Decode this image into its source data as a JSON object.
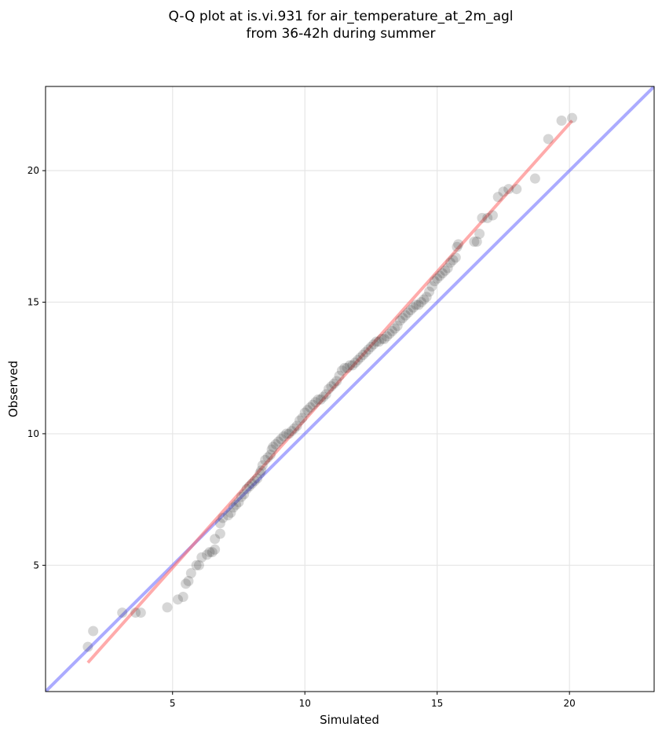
{
  "chart_data": {
    "type": "scatter",
    "title_lines": [
      "Q-Q plot at is.vi.931 for air_temperature_at_2m_agl",
      "from 36-42h during summer"
    ],
    "xlabel": "Simulated",
    "ylabel": "Observed",
    "xlim": [
      0.2,
      23.2
    ],
    "ylim": [
      0.2,
      23.2
    ],
    "xticks": [
      5,
      10,
      15,
      20
    ],
    "yticks": [
      5,
      10,
      15,
      20
    ],
    "grid": true,
    "colors": {
      "points": "#333333",
      "fit_line": "#ff6666",
      "identity_line": "#6666ff",
      "grid": "#e6e6e6"
    },
    "reference_lines": [
      {
        "role": "identity",
        "x": [
          0.2,
          23.2
        ],
        "y": [
          0.2,
          23.2
        ]
      },
      {
        "role": "fit",
        "x": [
          1.8,
          20.1
        ],
        "y": [
          1.3,
          21.9
        ]
      }
    ],
    "points": [
      [
        1.8,
        1.9
      ],
      [
        2.0,
        2.5
      ],
      [
        3.1,
        3.2
      ],
      [
        3.6,
        3.2
      ],
      [
        3.8,
        3.2
      ],
      [
        4.8,
        3.4
      ],
      [
        5.2,
        3.7
      ],
      [
        5.4,
        3.8
      ],
      [
        5.5,
        4.3
      ],
      [
        5.6,
        4.4
      ],
      [
        5.7,
        4.7
      ],
      [
        5.9,
        5.0
      ],
      [
        6.0,
        5.0
      ],
      [
        6.1,
        5.3
      ],
      [
        6.3,
        5.4
      ],
      [
        6.4,
        5.5
      ],
      [
        6.5,
        5.5
      ],
      [
        6.6,
        5.6
      ],
      [
        6.6,
        6.0
      ],
      [
        6.8,
        6.2
      ],
      [
        6.8,
        6.6
      ],
      [
        6.9,
        6.8
      ],
      [
        7.1,
        6.9
      ],
      [
        7.2,
        7.0
      ],
      [
        7.3,
        7.2
      ],
      [
        7.4,
        7.3
      ],
      [
        7.5,
        7.4
      ],
      [
        7.6,
        7.6
      ],
      [
        7.7,
        7.7
      ],
      [
        7.8,
        7.9
      ],
      [
        7.9,
        8.0
      ],
      [
        8.0,
        8.1
      ],
      [
        8.1,
        8.2
      ],
      [
        8.2,
        8.3
      ],
      [
        8.3,
        8.5
      ],
      [
        8.35,
        8.6
      ],
      [
        8.4,
        8.8
      ],
      [
        8.5,
        9.0
      ],
      [
        8.6,
        9.1
      ],
      [
        8.7,
        9.2
      ],
      [
        8.75,
        9.4
      ],
      [
        8.8,
        9.5
      ],
      [
        8.9,
        9.6
      ],
      [
        9.0,
        9.7
      ],
      [
        9.1,
        9.8
      ],
      [
        9.2,
        9.9
      ],
      [
        9.3,
        10.0
      ],
      [
        9.4,
        10.0
      ],
      [
        9.5,
        10.1
      ],
      [
        9.6,
        10.2
      ],
      [
        9.7,
        10.3
      ],
      [
        9.8,
        10.5
      ],
      [
        9.9,
        10.6
      ],
      [
        10.0,
        10.8
      ],
      [
        10.1,
        10.9
      ],
      [
        10.2,
        11.0
      ],
      [
        10.3,
        11.1
      ],
      [
        10.4,
        11.2
      ],
      [
        10.5,
        11.3
      ],
      [
        10.6,
        11.3
      ],
      [
        10.7,
        11.4
      ],
      [
        10.8,
        11.5
      ],
      [
        10.9,
        11.7
      ],
      [
        11.0,
        11.8
      ],
      [
        11.1,
        11.9
      ],
      [
        11.2,
        12.0
      ],
      [
        11.3,
        12.2
      ],
      [
        11.4,
        12.4
      ],
      [
        11.5,
        12.5
      ],
      [
        11.6,
        12.5
      ],
      [
        11.7,
        12.6
      ],
      [
        11.8,
        12.6
      ],
      [
        11.9,
        12.7
      ],
      [
        12.0,
        12.8
      ],
      [
        12.1,
        12.9
      ],
      [
        12.2,
        13.0
      ],
      [
        12.3,
        13.1
      ],
      [
        12.4,
        13.2
      ],
      [
        12.5,
        13.3
      ],
      [
        12.6,
        13.4
      ],
      [
        12.7,
        13.5
      ],
      [
        12.8,
        13.5
      ],
      [
        12.9,
        13.6
      ],
      [
        13.0,
        13.6
      ],
      [
        13.1,
        13.7
      ],
      [
        13.2,
        13.8
      ],
      [
        13.3,
        13.9
      ],
      [
        13.4,
        14.0
      ],
      [
        13.5,
        14.1
      ],
      [
        13.6,
        14.3
      ],
      [
        13.7,
        14.4
      ],
      [
        13.8,
        14.5
      ],
      [
        13.9,
        14.6
      ],
      [
        14.0,
        14.7
      ],
      [
        14.1,
        14.8
      ],
      [
        14.2,
        14.9
      ],
      [
        14.3,
        14.9
      ],
      [
        14.4,
        15.0
      ],
      [
        14.5,
        15.1
      ],
      [
        14.6,
        15.2
      ],
      [
        14.7,
        15.4
      ],
      [
        14.8,
        15.6
      ],
      [
        14.9,
        15.8
      ],
      [
        15.0,
        15.9
      ],
      [
        15.1,
        16.0
      ],
      [
        15.2,
        16.1
      ],
      [
        15.3,
        16.2
      ],
      [
        15.4,
        16.3
      ],
      [
        15.5,
        16.5
      ],
      [
        15.6,
        16.6
      ],
      [
        15.7,
        16.7
      ],
      [
        15.75,
        17.1
      ],
      [
        15.8,
        17.2
      ],
      [
        16.4,
        17.3
      ],
      [
        16.5,
        17.3
      ],
      [
        16.6,
        17.6
      ],
      [
        16.7,
        18.2
      ],
      [
        16.9,
        18.2
      ],
      [
        17.1,
        18.3
      ],
      [
        17.3,
        19.0
      ],
      [
        17.5,
        19.2
      ],
      [
        17.7,
        19.3
      ],
      [
        18.0,
        19.3
      ],
      [
        18.7,
        19.7
      ],
      [
        19.2,
        21.2
      ],
      [
        19.7,
        21.9
      ],
      [
        20.1,
        22.0
      ]
    ]
  }
}
